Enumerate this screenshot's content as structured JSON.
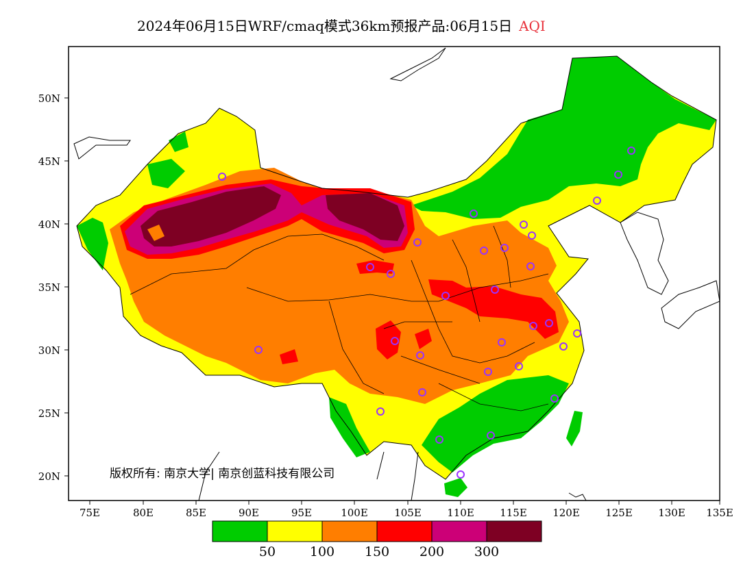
{
  "title": {
    "main": "2024年06月15日WRF/cmaq模式36km预报产品:06月15日",
    "variable": "AQI"
  },
  "copyright": "版权所有: 南京大学| 南京创蓝科技有限公司",
  "axes": {
    "lat_ticks": [
      "50N",
      "45N",
      "40N",
      "35N",
      "30N",
      "25N",
      "20N"
    ],
    "lon_ticks": [
      "75E",
      "80E",
      "85E",
      "90E",
      "95E",
      "100E",
      "105E",
      "110E",
      "115E",
      "120E",
      "125E",
      "130E",
      "135E"
    ]
  },
  "legend": {
    "colors": [
      "#00cc00",
      "#ffff00",
      "#ff7e00",
      "#ff0000",
      "#cc0077",
      "#7e0023"
    ],
    "labels": [
      "50",
      "100",
      "150",
      "200",
      "300"
    ]
  },
  "map_colors": {
    "good": "#00cc00",
    "moderate": "#ffff00",
    "usg": "#ff7e00",
    "unhealthy": "#ff0000",
    "very_unhealthy": "#cc0077",
    "hazardous": "#7e0023",
    "station_marker": "#9933ff"
  }
}
